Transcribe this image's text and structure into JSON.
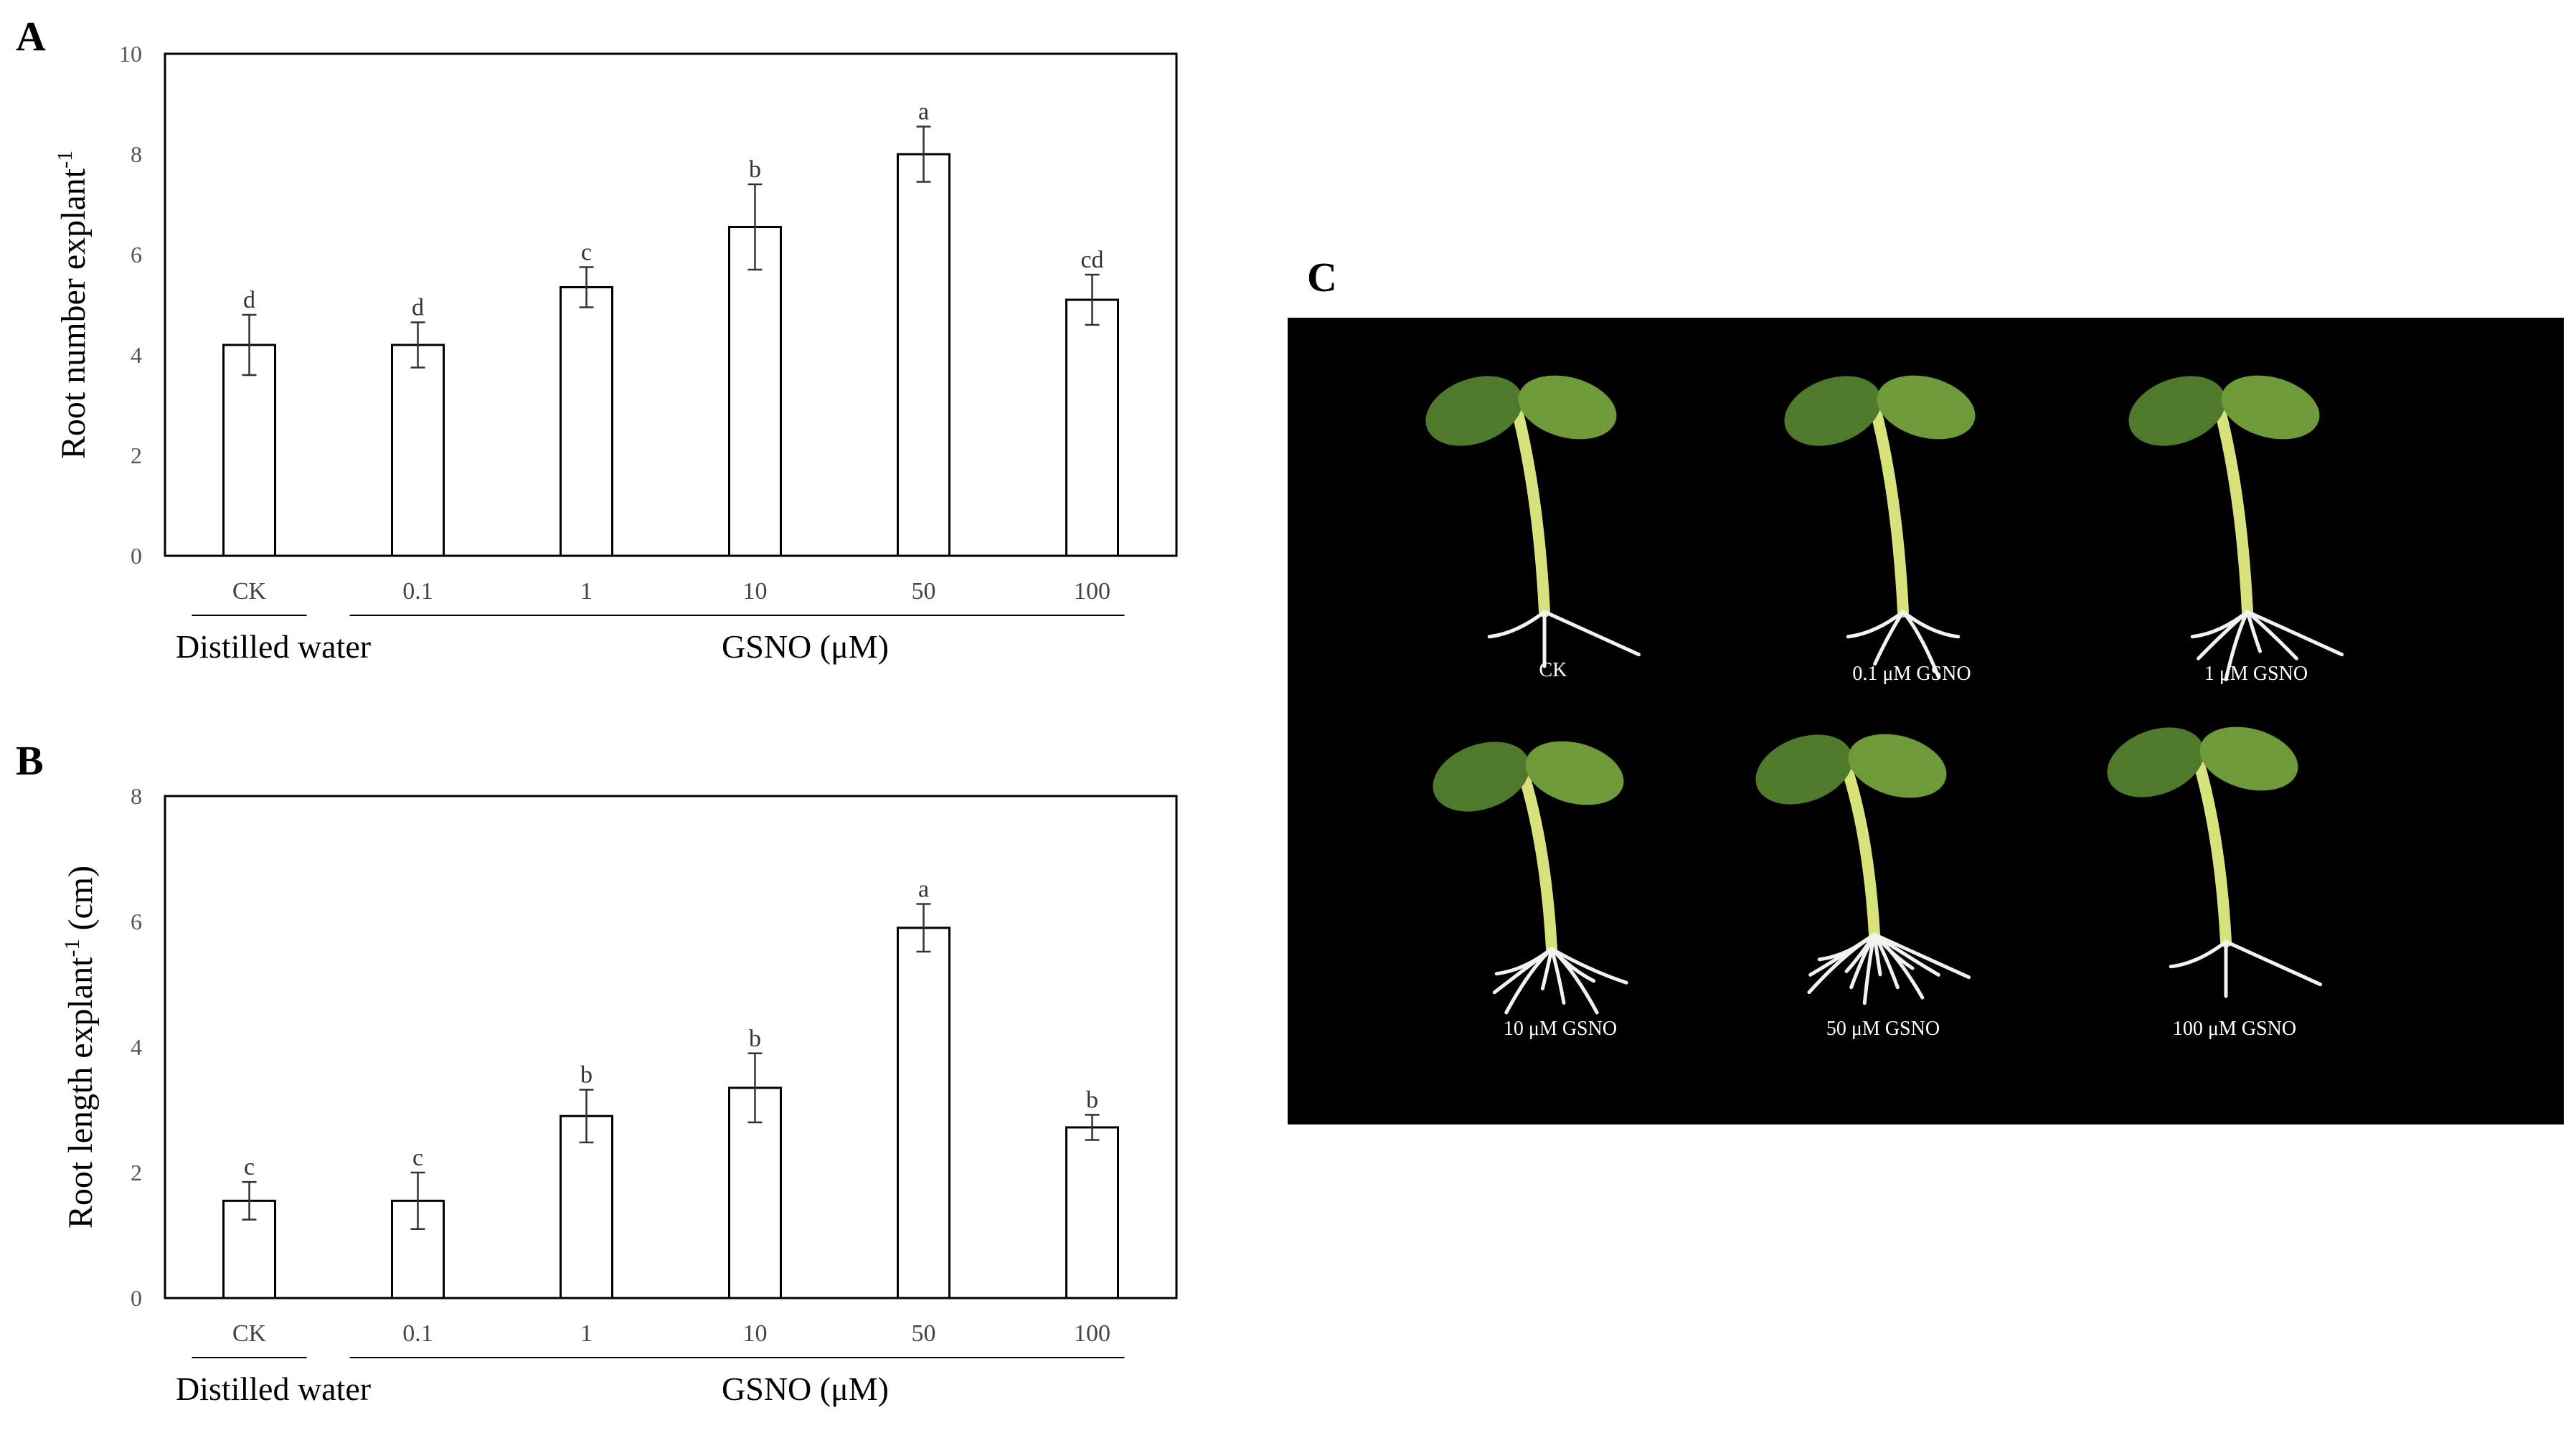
{
  "panels": {
    "A": "A",
    "B": "B",
    "C": "C"
  },
  "chart_data": [
    {
      "type": "bar",
      "panel": "A",
      "ylabel": "Root number explant",
      "ylabel_superscript": "-1",
      "ylim": [
        0,
        10
      ],
      "yticks": [
        "0",
        "2",
        "4",
        "6",
        "8",
        "10"
      ],
      "categories": [
        "CK",
        "0.1",
        "1",
        "10",
        "50",
        "100"
      ],
      "values": [
        4.2,
        4.2,
        5.35,
        6.55,
        8.0,
        5.1
      ],
      "errors": [
        0.6,
        0.45,
        0.4,
        0.85,
        0.55,
        0.5
      ],
      "significance": [
        "d",
        "d",
        "c",
        "b",
        "a",
        "cd"
      ],
      "group_labels": [
        "Distilled water",
        "GSNO (μM)"
      ],
      "grid": false,
      "legend": "none",
      "bar_color": "#ffffff",
      "edge_color": "#000000"
    },
    {
      "type": "bar",
      "panel": "B",
      "ylabel": "Root length explant",
      "ylabel_superscript": "-1",
      "ylabel_suffix": " (cm)",
      "ylim": [
        0,
        8
      ],
      "yticks": [
        "0",
        "2",
        "4",
        "6",
        "8"
      ],
      "categories": [
        "CK",
        "0.1",
        "1",
        "10",
        "50",
        "100"
      ],
      "values": [
        1.55,
        1.55,
        2.9,
        3.35,
        5.9,
        2.72
      ],
      "errors": [
        0.3,
        0.45,
        0.42,
        0.55,
        0.38,
        0.2
      ],
      "significance": [
        "c",
        "c",
        "b",
        "b",
        "a",
        "b"
      ],
      "group_labels": [
        "Distilled water",
        "GSNO (μM)"
      ],
      "grid": false,
      "legend": "none",
      "bar_color": "#ffffff",
      "edge_color": "#000000"
    }
  ],
  "photo": {
    "background": "#000000",
    "plant_stem_color": "#d8e27a",
    "leaf_color": "#4f7a2c",
    "root_color": "#f2f2f0",
    "labels": [
      "CK",
      "0.1 μM GSNO",
      "1 μM GSNO",
      "10 μM GSNO",
      "50 μM GSNO",
      "100 μM GSNO"
    ]
  }
}
